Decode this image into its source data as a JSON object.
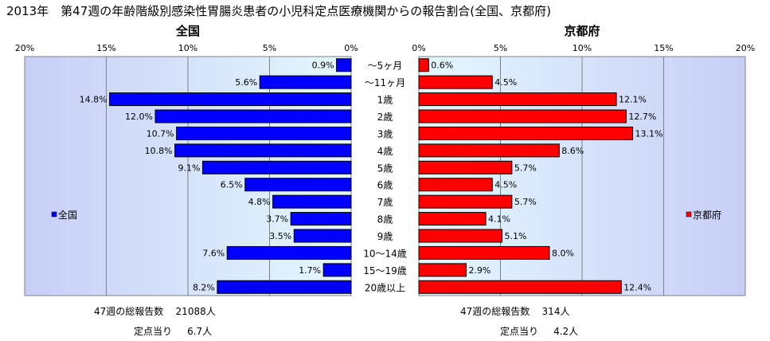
{
  "title": "2013年　第47週の年齢階級別感染性胃腸炎患者の小児科定点医療機関からの報告割合(全国、京都府)",
  "chart_data": {
    "type": "bar",
    "categories": [
      "〜5ヶ月",
      "〜11ヶ月",
      "1歳",
      "2歳",
      "3歳",
      "4歳",
      "5歳",
      "6歳",
      "7歳",
      "8歳",
      "9歳",
      "10〜14歳",
      "15〜19歳",
      "20歳以上"
    ],
    "xlim": [
      0,
      20
    ],
    "ticks": [
      "0%",
      "5%",
      "10%",
      "15%",
      "20%"
    ],
    "grid": true,
    "panels": [
      {
        "name": "全国",
        "heading": "全国",
        "side": "left",
        "legend_position": "left",
        "color": "#0000ff",
        "values": [
          0.9,
          5.6,
          14.8,
          12.0,
          10.7,
          10.8,
          9.1,
          6.5,
          4.8,
          3.7,
          3.5,
          7.6,
          1.7,
          8.2
        ],
        "labels": [
          "0.9%",
          "5.6%",
          "14.8%",
          "12.0%",
          "10.7%",
          "10.8%",
          "9.1%",
          "6.5%",
          "4.8%",
          "3.7%",
          "3.5%",
          "7.6%",
          "1.7%",
          "8.2%"
        ]
      },
      {
        "name": "京都府",
        "heading": "京都府",
        "side": "right",
        "legend_position": "right",
        "color": "#ff0000",
        "values": [
          0.6,
          4.5,
          12.1,
          12.7,
          13.1,
          8.6,
          5.7,
          4.5,
          5.7,
          4.1,
          5.1,
          8.0,
          2.9,
          12.4
        ],
        "labels": [
          "0.6%",
          "4.5%",
          "12.1%",
          "12.7%",
          "13.1%",
          "8.6%",
          "5.7%",
          "4.5%",
          "5.7%",
          "4.1%",
          "5.1%",
          "8.0%",
          "2.9%",
          "12.4%"
        ]
      }
    ]
  },
  "stats": {
    "national": {
      "total_label": "47週の総報告数",
      "total_value": "21088人",
      "per_label": "定点当り",
      "per_value": "6.7人"
    },
    "kyoto": {
      "total_label": "47週の総報告数",
      "total_value": "314人",
      "per_label": "定点当り",
      "per_value": "4.2人"
    }
  }
}
